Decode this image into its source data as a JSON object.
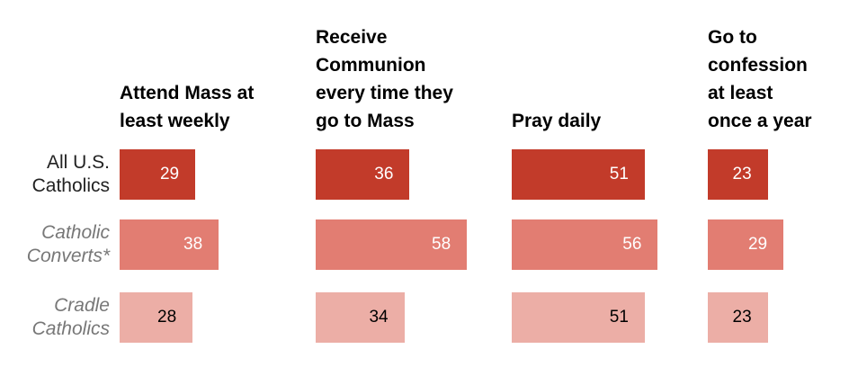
{
  "chart_data": {
    "type": "bar",
    "categories": [
      "All U.S.\nCatholics",
      "Catholic\nConverts*",
      "Cradle\nCatholics"
    ],
    "colors": [
      "#c23b2a",
      "#e27d72",
      "#ecaea6"
    ],
    "series": [
      {
        "name": "Attend Mass at\nleast weekly",
        "values": [
          29,
          38,
          28
        ]
      },
      {
        "name": "Receive\nCommunion\nevery time they\ngo to Mass",
        "values": [
          36,
          58,
          34
        ]
      },
      {
        "name": "Pray daily",
        "values": [
          51,
          56,
          51
        ]
      },
      {
        "name": "Go to\nconfession\nat least\nonce a year",
        "values": [
          23,
          29,
          23
        ]
      }
    ]
  }
}
